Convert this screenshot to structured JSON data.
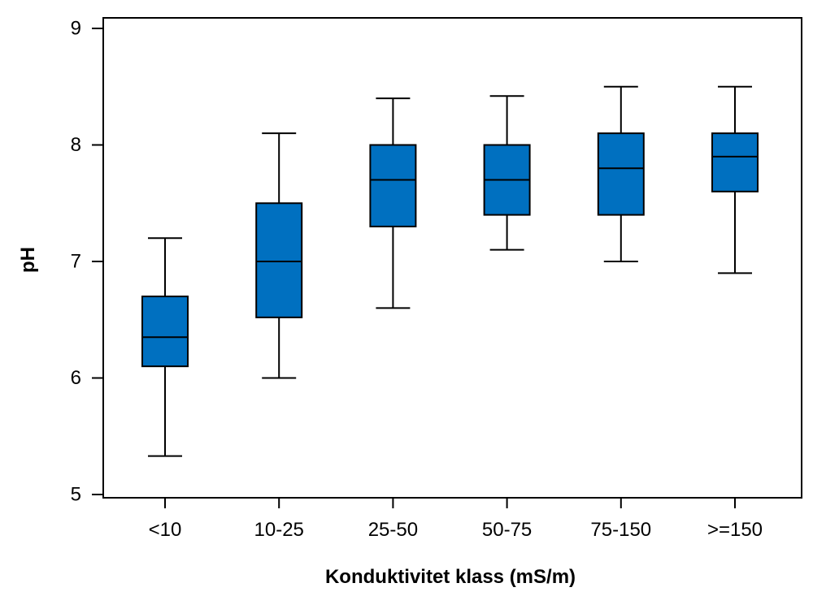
{
  "chart_data": {
    "type": "boxplot",
    "title": "",
    "xlabel": "Konduktivitet klass (mS/m)",
    "ylabel": "pH",
    "ylim": [
      5,
      9
    ],
    "yticks": [
      "5",
      "6",
      "7",
      "8",
      "9"
    ],
    "grid": false,
    "legend": "none",
    "box_color": "#0070C0",
    "categories": [
      "<10",
      "10-25",
      "25-50",
      "50-75",
      "75-150",
      ">=150"
    ],
    "boxes": [
      {
        "category": "<10",
        "whisker_low": 5.33,
        "q1": 6.1,
        "median": 6.35,
        "q3": 6.7,
        "whisker_high": 7.2
      },
      {
        "category": "10-25",
        "whisker_low": 6.0,
        "q1": 6.52,
        "median": 7.0,
        "q3": 7.5,
        "whisker_high": 8.1
      },
      {
        "category": "25-50",
        "whisker_low": 6.6,
        "q1": 7.3,
        "median": 7.7,
        "q3": 8.0,
        "whisker_high": 8.4
      },
      {
        "category": "50-75",
        "whisker_low": 7.1,
        "q1": 7.4,
        "median": 7.7,
        "q3": 8.0,
        "whisker_high": 8.42
      },
      {
        "category": "75-150",
        "whisker_low": 7.0,
        "q1": 7.4,
        "median": 7.8,
        "q3": 8.1,
        "whisker_high": 8.5
      },
      {
        "category": ">=150",
        "whisker_low": 6.9,
        "q1": 7.6,
        "median": 7.9,
        "q3": 8.1,
        "whisker_high": 8.5
      }
    ]
  }
}
